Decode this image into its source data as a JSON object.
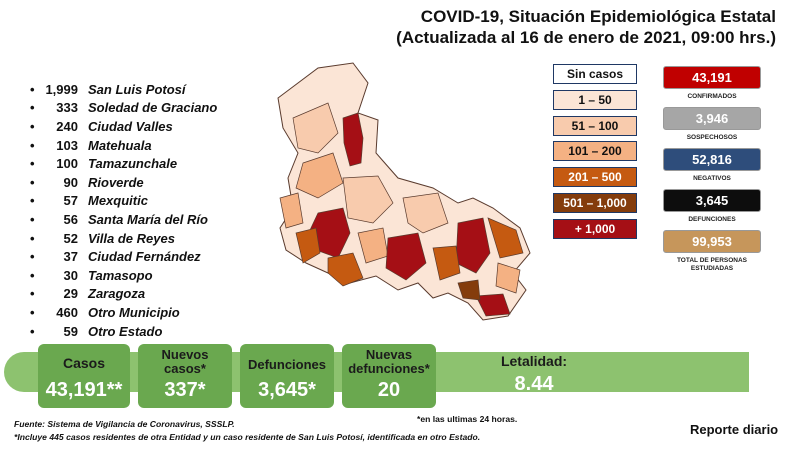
{
  "header": {
    "title_line1": "COVID-19, Situación Epidemiológica Estatal",
    "title_line2": "(Actualizada al 16 de enero de 2021, 09:00 hrs.)"
  },
  "municipalities": [
    {
      "value": "1,999",
      "name": "San Luis Potosí"
    },
    {
      "value": "333",
      "name": "Soledad de Graciano"
    },
    {
      "value": "240",
      "name": "Ciudad Valles"
    },
    {
      "value": "103",
      "name": "Matehuala"
    },
    {
      "value": "100",
      "name": "Tamazunchale"
    },
    {
      "value": "90",
      "name": "Rioverde"
    },
    {
      "value": "57",
      "name": "Mexquitic"
    },
    {
      "value": "56",
      "name": "Santa María del Río"
    },
    {
      "value": "52",
      "name": "Villa de Reyes"
    },
    {
      "value": "37",
      "name": "Ciudad Fernández"
    },
    {
      "value": "30",
      "name": "Tamasopo"
    },
    {
      "value": "29",
      "name": "Zaragoza"
    },
    {
      "value": "460",
      "name": "Otro Municipio"
    },
    {
      "value": "59",
      "name": "Otro Estado"
    }
  ],
  "legend": [
    {
      "label": "Sin casos",
      "color": "#ffffff"
    },
    {
      "label": "1 – 50",
      "color": "#fbe5d6"
    },
    {
      "label": "51 – 100",
      "color": "#f8cbad"
    },
    {
      "label": "101 – 200",
      "color": "#f4b183"
    },
    {
      "label": "201 – 500",
      "color": "#c55a11"
    },
    {
      "label": "501 – 1,000",
      "color": "#843c0c"
    },
    {
      "label": "+ 1,000",
      "color": "#a50f15"
    }
  ],
  "stats": [
    {
      "value": "43,191",
      "label": "CONFIRMADOS",
      "color": "#c00000"
    },
    {
      "value": "3,946",
      "label": "SOSPECHOSOS",
      "color": "#a6a6a6"
    },
    {
      "value": "52,816",
      "label": "NEGATIVOS",
      "color": "#2e4d7b"
    },
    {
      "value": "3,645",
      "label": "DEFUNCIONES",
      "color": "#0d0d0d"
    },
    {
      "value": "99,953",
      "label": "TOTAL DE PERSONAS ESTUDIADAS",
      "color": "#c6965b"
    }
  ],
  "summary": {
    "casos_label": "Casos",
    "casos_value": "43,191**",
    "nuevos_label": "Nuevos casos*",
    "nuevos_value": "337*",
    "def_label": "Defunciones",
    "def_value": "3,645*",
    "nuevas_def_label": "Nuevas defunciones*",
    "nuevas_def_value": "20",
    "letalidad_label": "Letalidad:",
    "letalidad_value": "8.44"
  },
  "footer": {
    "note_24h": "*en las ultimas 24 horas.",
    "source": "Fuente: Sistema de Vigilancia de Coronavirus, SSSLP.",
    "note_resid": "*Incluye 445 casos residentes de otra Entidad y un caso residente de San Luis Potosí, identificada en otro Estado.",
    "report": "Reporte diario"
  }
}
